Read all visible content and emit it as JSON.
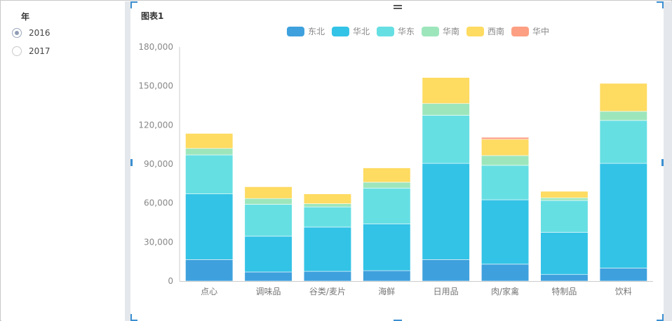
{
  "filter": {
    "title": "年",
    "options": [
      {
        "label": "2016",
        "checked": true
      },
      {
        "label": "2017",
        "checked": false
      }
    ]
  },
  "card": {
    "title": "图表1"
  },
  "chart_data": {
    "type": "bar",
    "stacked": true,
    "categories": [
      "点心",
      "调味品",
      "谷类/麦片",
      "海鲜",
      "日用品",
      "肉/家禽",
      "特制品",
      "饮料"
    ],
    "series": [
      {
        "name": "东北",
        "color": "#3ea1dd",
        "values": [
          16500,
          7000,
          7500,
          8000,
          16500,
          13000,
          5000,
          10000
        ]
      },
      {
        "name": "华北",
        "color": "#33c3e6",
        "values": [
          50500,
          27500,
          34000,
          36000,
          74000,
          49500,
          32500,
          80500
        ]
      },
      {
        "name": "华东",
        "color": "#66dfe3",
        "values": [
          30000,
          24500,
          15500,
          27500,
          37000,
          26500,
          24500,
          33000
        ]
      },
      {
        "name": "华南",
        "color": "#9de6bc",
        "values": [
          5000,
          4500,
          2500,
          4500,
          9000,
          7500,
          2000,
          7000
        ]
      },
      {
        "name": "西南",
        "color": "#fedb61",
        "values": [
          11500,
          9000,
          7500,
          11000,
          20000,
          12500,
          5000,
          21500
        ]
      },
      {
        "name": "华中",
        "color": "#fd9f82",
        "values": [
          0,
          0,
          0,
          0,
          0,
          1500,
          0,
          0
        ]
      }
    ],
    "ylim": [
      0,
      180000
    ],
    "yticks": [
      0,
      30000,
      60000,
      90000,
      120000,
      150000,
      180000
    ],
    "ytick_labels": [
      "0",
      "30,000",
      "60,000",
      "90,000",
      "120,000",
      "150,000",
      "180,000"
    ],
    "grid": false,
    "legend_position": "top-center"
  }
}
